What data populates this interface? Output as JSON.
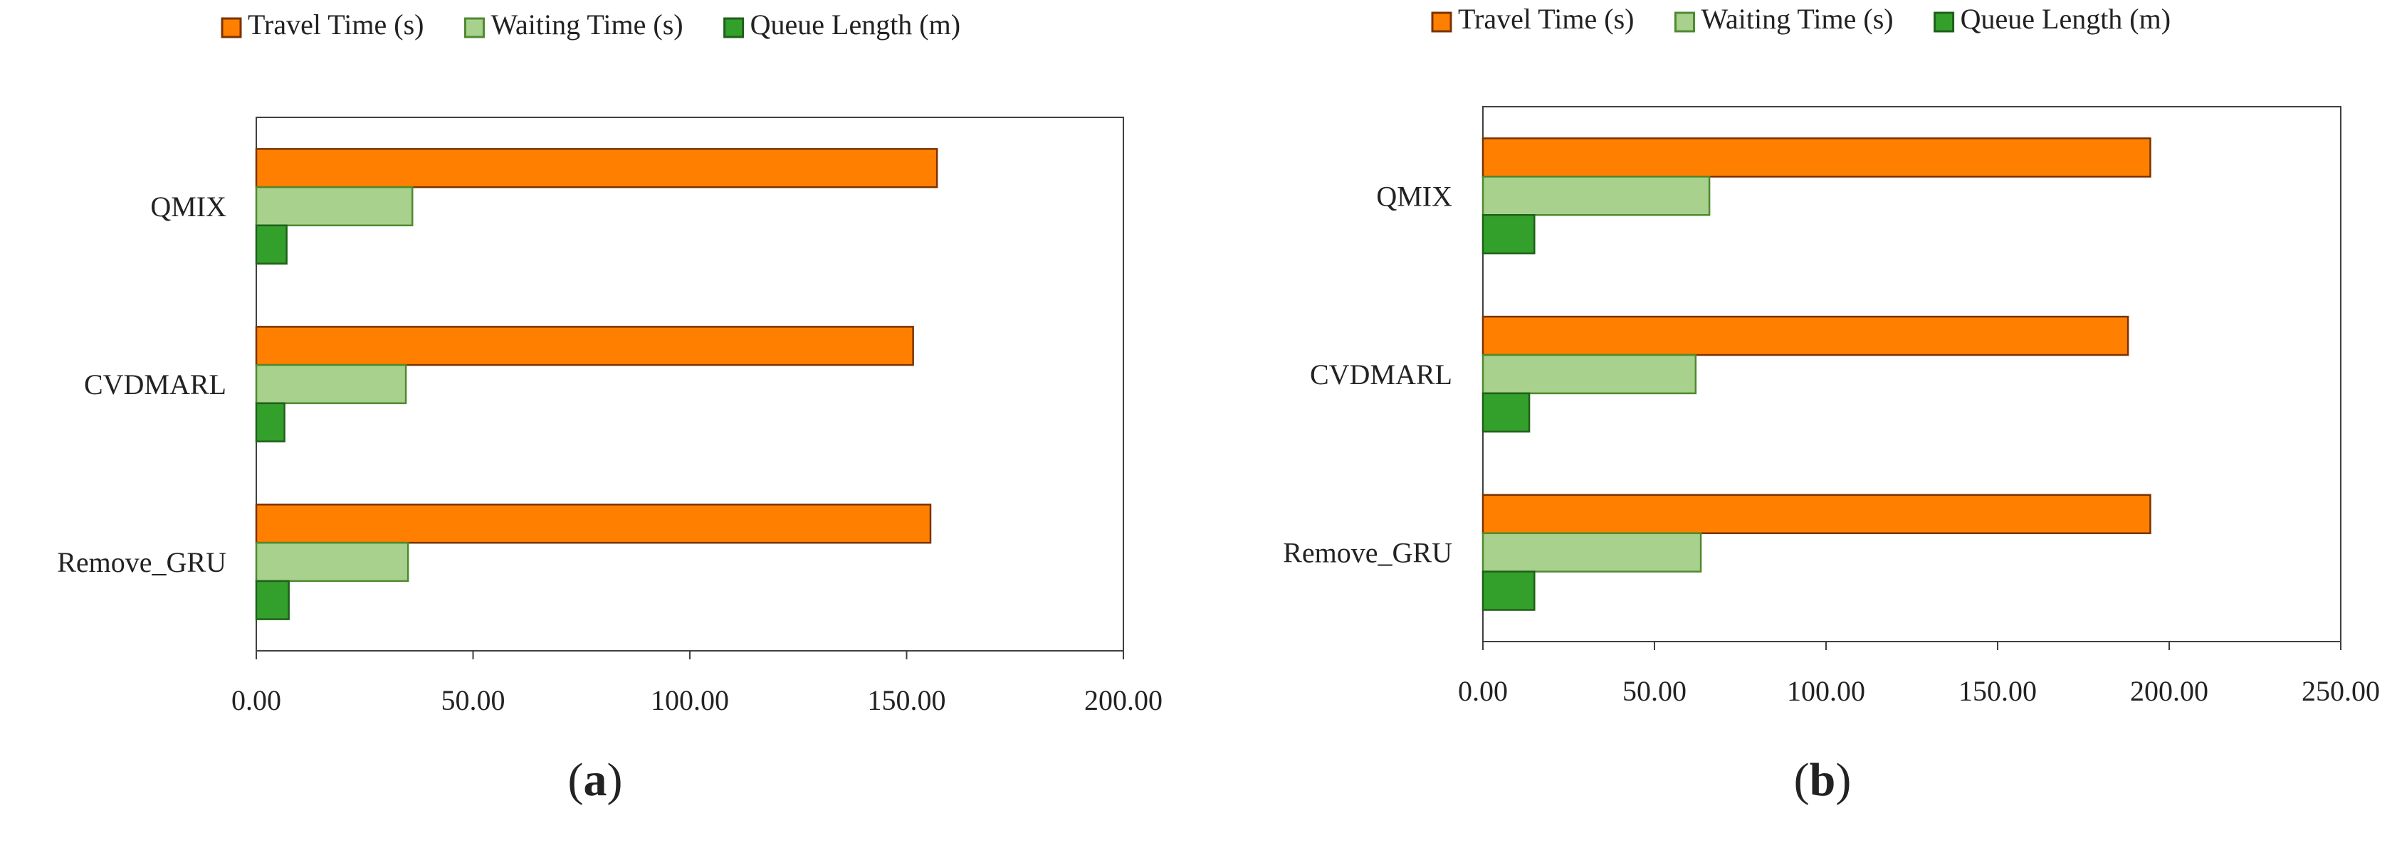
{
  "colors": {
    "travel_fill": "#FF8000",
    "travel_stroke": "#7A3200",
    "waiting_fill": "#A9D18E",
    "waiting_stroke": "#4E8A2E",
    "queue_fill": "#33A02C",
    "queue_stroke": "#1F5F1A",
    "plot_border": "#404040",
    "text": "#222222"
  },
  "chart_data": [
    {
      "type": "bar",
      "orientation": "horizontal",
      "panel_label": "(a)",
      "panel_letter": "a",
      "categories": [
        "QMIX",
        "CVDMARL",
        "Remove_GRU"
      ],
      "series": [
        {
          "name": "Travel Time (s)",
          "values": [
            157.0,
            151.5,
            155.5
          ]
        },
        {
          "name": "Waiting Time (s)",
          "values": [
            36.0,
            34.5,
            35.0
          ]
        },
        {
          "name": "Queue Length (m)",
          "values": [
            7.0,
            6.5,
            7.5
          ]
        }
      ],
      "xlim": [
        0,
        200
      ],
      "xticks": [
        "0.00",
        "50.00",
        "100.00",
        "150.00",
        "200.00"
      ],
      "legend": [
        "Travel Time (s)",
        "Waiting Time (s)",
        "Queue Length (m)"
      ],
      "legend_position": "top",
      "grid": false
    },
    {
      "type": "bar",
      "orientation": "horizontal",
      "panel_label": "(b)",
      "panel_letter": "b",
      "categories": [
        "QMIX",
        "CVDMARL",
        "Remove_GRU"
      ],
      "series": [
        {
          "name": "Travel Time (s)",
          "values": [
            194.5,
            188.0,
            194.5
          ]
        },
        {
          "name": "Waiting Time (s)",
          "values": [
            66.0,
            62.0,
            63.5
          ]
        },
        {
          "name": "Queue Length (m)",
          "values": [
            15.0,
            13.5,
            15.0
          ]
        }
      ],
      "xlim": [
        0,
        250
      ],
      "xticks": [
        "0.00",
        "50.00",
        "100.00",
        "150.00",
        "200.00",
        "250.00"
      ],
      "legend": [
        "Travel Time (s)",
        "Waiting Time (s)",
        "Queue Length (m)"
      ],
      "legend_position": "top",
      "grid": false
    }
  ]
}
